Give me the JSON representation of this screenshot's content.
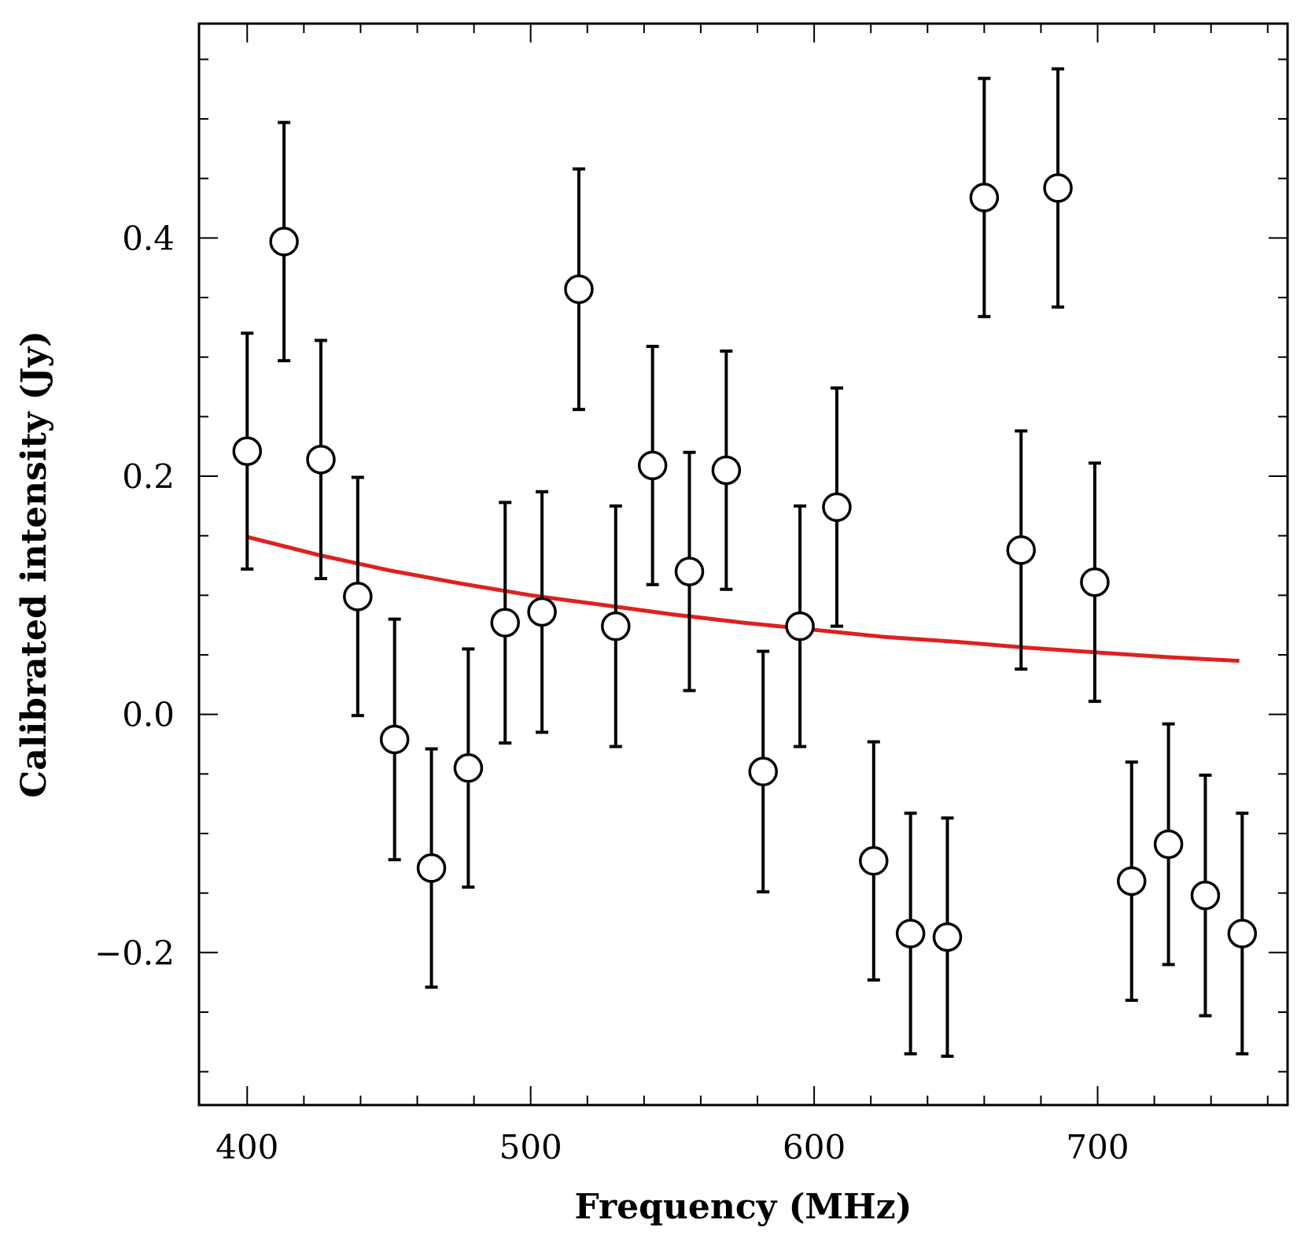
{
  "chart_data": {
    "type": "scatter",
    "title": "",
    "xlabel": "Frequency (MHz)",
    "ylabel": "Calibrated intensity (Jy)",
    "xlim": [
      383,
      767
    ],
    "ylim": [
      -0.328,
      0.58
    ],
    "x_ticks_major": [
      400,
      500,
      600,
      700
    ],
    "x_tick_labels": [
      "400",
      "500",
      "600",
      "700"
    ],
    "y_ticks_major": [
      -0.2,
      0.0,
      0.2,
      0.4
    ],
    "y_tick_labels": [
      "−0.2",
      "0.0",
      "0.2",
      "0.4"
    ],
    "x_minor_step": 20,
    "y_minor_step": 0.05,
    "grid": false,
    "legend": null,
    "series": [
      {
        "name": "measurements",
        "marker": "open-circle",
        "color": "#000000",
        "points": [
          {
            "x": 400,
            "y": 0.221,
            "yerr": 0.099
          },
          {
            "x": 413,
            "y": 0.397,
            "yerr": 0.1
          },
          {
            "x": 426,
            "y": 0.214,
            "yerr": 0.1
          },
          {
            "x": 439,
            "y": 0.099,
            "yerr": 0.1
          },
          {
            "x": 452,
            "y": -0.021,
            "yerr": 0.101
          },
          {
            "x": 465,
            "y": -0.129,
            "yerr": 0.1
          },
          {
            "x": 478,
            "y": -0.045,
            "yerr": 0.1
          },
          {
            "x": 491,
            "y": 0.077,
            "yerr": 0.101
          },
          {
            "x": 504,
            "y": 0.086,
            "yerr": 0.101
          },
          {
            "x": 517,
            "y": 0.357,
            "yerr": 0.101
          },
          {
            "x": 530,
            "y": 0.074,
            "yerr": 0.101
          },
          {
            "x": 543,
            "y": 0.209,
            "yerr": 0.1
          },
          {
            "x": 556,
            "y": 0.12,
            "yerr": 0.1
          },
          {
            "x": 569,
            "y": 0.205,
            "yerr": 0.1
          },
          {
            "x": 582,
            "y": -0.048,
            "yerr": 0.101
          },
          {
            "x": 595,
            "y": 0.074,
            "yerr": 0.101
          },
          {
            "x": 608,
            "y": 0.174,
            "yerr": 0.1
          },
          {
            "x": 621,
            "y": -0.123,
            "yerr": 0.1
          },
          {
            "x": 634,
            "y": -0.184,
            "yerr": 0.101
          },
          {
            "x": 647,
            "y": -0.187,
            "yerr": 0.1
          },
          {
            "x": 660,
            "y": 0.434,
            "yerr": 0.1
          },
          {
            "x": 673,
            "y": 0.138,
            "yerr": 0.1
          },
          {
            "x": 686,
            "y": 0.442,
            "yerr": 0.1
          },
          {
            "x": 699,
            "y": 0.111,
            "yerr": 0.1
          },
          {
            "x": 712,
            "y": -0.14,
            "yerr": 0.1
          },
          {
            "x": 725,
            "y": -0.109,
            "yerr": 0.101
          },
          {
            "x": 738,
            "y": -0.152,
            "yerr": 0.101
          },
          {
            "x": 751,
            "y": -0.184,
            "yerr": 0.101
          }
        ]
      },
      {
        "name": "fit",
        "type": "line",
        "color": "#e02020",
        "x": [
          400,
          425,
          450,
          475,
          500,
          525,
          550,
          575,
          600,
          625,
          650,
          675,
          700,
          725,
          750
        ],
        "y": [
          0.149,
          0.134,
          0.121,
          0.11,
          0.1,
          0.092,
          0.084,
          0.077,
          0.071,
          0.065,
          0.061,
          0.056,
          0.052,
          0.048,
          0.045
        ]
      }
    ]
  }
}
